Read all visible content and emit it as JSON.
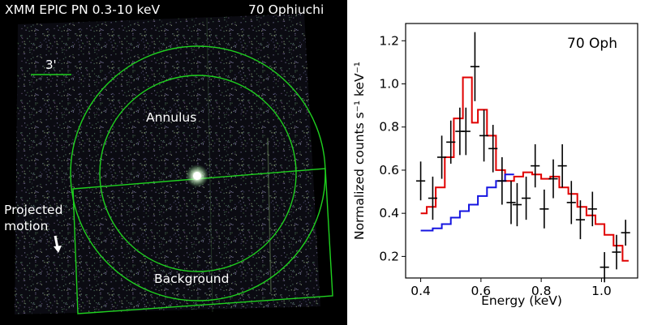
{
  "left_panel": {
    "title": "XMM EPIC PN 0.3-10 keV",
    "target": "70 Ophiuchi",
    "scale_label": "3'",
    "annulus_label": "Annulus",
    "background_label": "Background",
    "motion_label_line1": "Projected",
    "motion_label_line2": "motion",
    "colors": {
      "background": "#000000",
      "region": "#1fd21f",
      "text": "#ffffff",
      "source": "#f4fff0"
    }
  },
  "chart_data": {
    "type": "line",
    "title": "70 Oph",
    "xlabel": "Energy (keV)",
    "ylabel": "Normalized counts s⁻¹ keV⁻¹",
    "xlim": [
      0.35,
      1.12
    ],
    "ylim": [
      0.1,
      1.28
    ],
    "xticks": [
      0.4,
      0.6,
      0.8,
      1.0
    ],
    "xtick_labels": [
      "0.4",
      "0.6",
      "0.8",
      "1.0"
    ],
    "yticks": [
      0.2,
      0.4,
      0.6,
      0.8,
      1.0,
      1.2
    ],
    "ytick_labels": [
      "0.2",
      "0.4",
      "0.6",
      "0.8",
      "1.0",
      "1.2"
    ],
    "grid": false,
    "data_points": {
      "x": [
        0.4,
        0.44,
        0.47,
        0.5,
        0.53,
        0.55,
        0.58,
        0.61,
        0.64,
        0.67,
        0.7,
        0.72,
        0.75,
        0.78,
        0.81,
        0.84,
        0.87,
        0.9,
        0.93,
        0.97,
        1.01,
        1.05,
        1.08
      ],
      "y": [
        0.55,
        0.47,
        0.66,
        0.73,
        0.78,
        0.78,
        1.08,
        0.76,
        0.7,
        0.55,
        0.45,
        0.44,
        0.47,
        0.62,
        0.42,
        0.56,
        0.62,
        0.45,
        0.37,
        0.42,
        0.15,
        0.22,
        0.31
      ],
      "yerr": [
        0.09,
        0.1,
        0.1,
        0.1,
        0.11,
        0.11,
        0.16,
        0.12,
        0.11,
        0.11,
        0.1,
        0.1,
        0.1,
        0.1,
        0.09,
        0.09,
        0.1,
        0.1,
        0.09,
        0.08,
        0.07,
        0.08,
        0.06
      ],
      "xerr": [
        0.015,
        0.015,
        0.015,
        0.015,
        0.015,
        0.015,
        0.015,
        0.015,
        0.015,
        0.015,
        0.015,
        0.015,
        0.015,
        0.015,
        0.015,
        0.015,
        0.015,
        0.015,
        0.015,
        0.015,
        0.015,
        0.015,
        0.015
      ],
      "color": "#000000"
    },
    "series": [
      {
        "color": "#e00000",
        "step_x": [
          0.4,
          0.42,
          0.45,
          0.48,
          0.51,
          0.54,
          0.57,
          0.59,
          0.62,
          0.65,
          0.68,
          0.71,
          0.74,
          0.77,
          0.8,
          0.83,
          0.86,
          0.89,
          0.92,
          0.95,
          0.98,
          1.01,
          1.04,
          1.07,
          1.09
        ],
        "step_y": [
          0.4,
          0.43,
          0.52,
          0.66,
          0.84,
          1.03,
          0.82,
          0.88,
          0.76,
          0.6,
          0.55,
          0.57,
          0.59,
          0.58,
          0.56,
          0.57,
          0.52,
          0.49,
          0.43,
          0.39,
          0.35,
          0.3,
          0.25,
          0.18
        ]
      },
      {
        "color": "#1414e0",
        "step_x": [
          0.4,
          0.44,
          0.47,
          0.5,
          0.53,
          0.56,
          0.59,
          0.62,
          0.65,
          0.68,
          0.71
        ],
        "step_y": [
          0.32,
          0.33,
          0.35,
          0.38,
          0.41,
          0.44,
          0.48,
          0.52,
          0.55,
          0.58
        ]
      }
    ]
  }
}
